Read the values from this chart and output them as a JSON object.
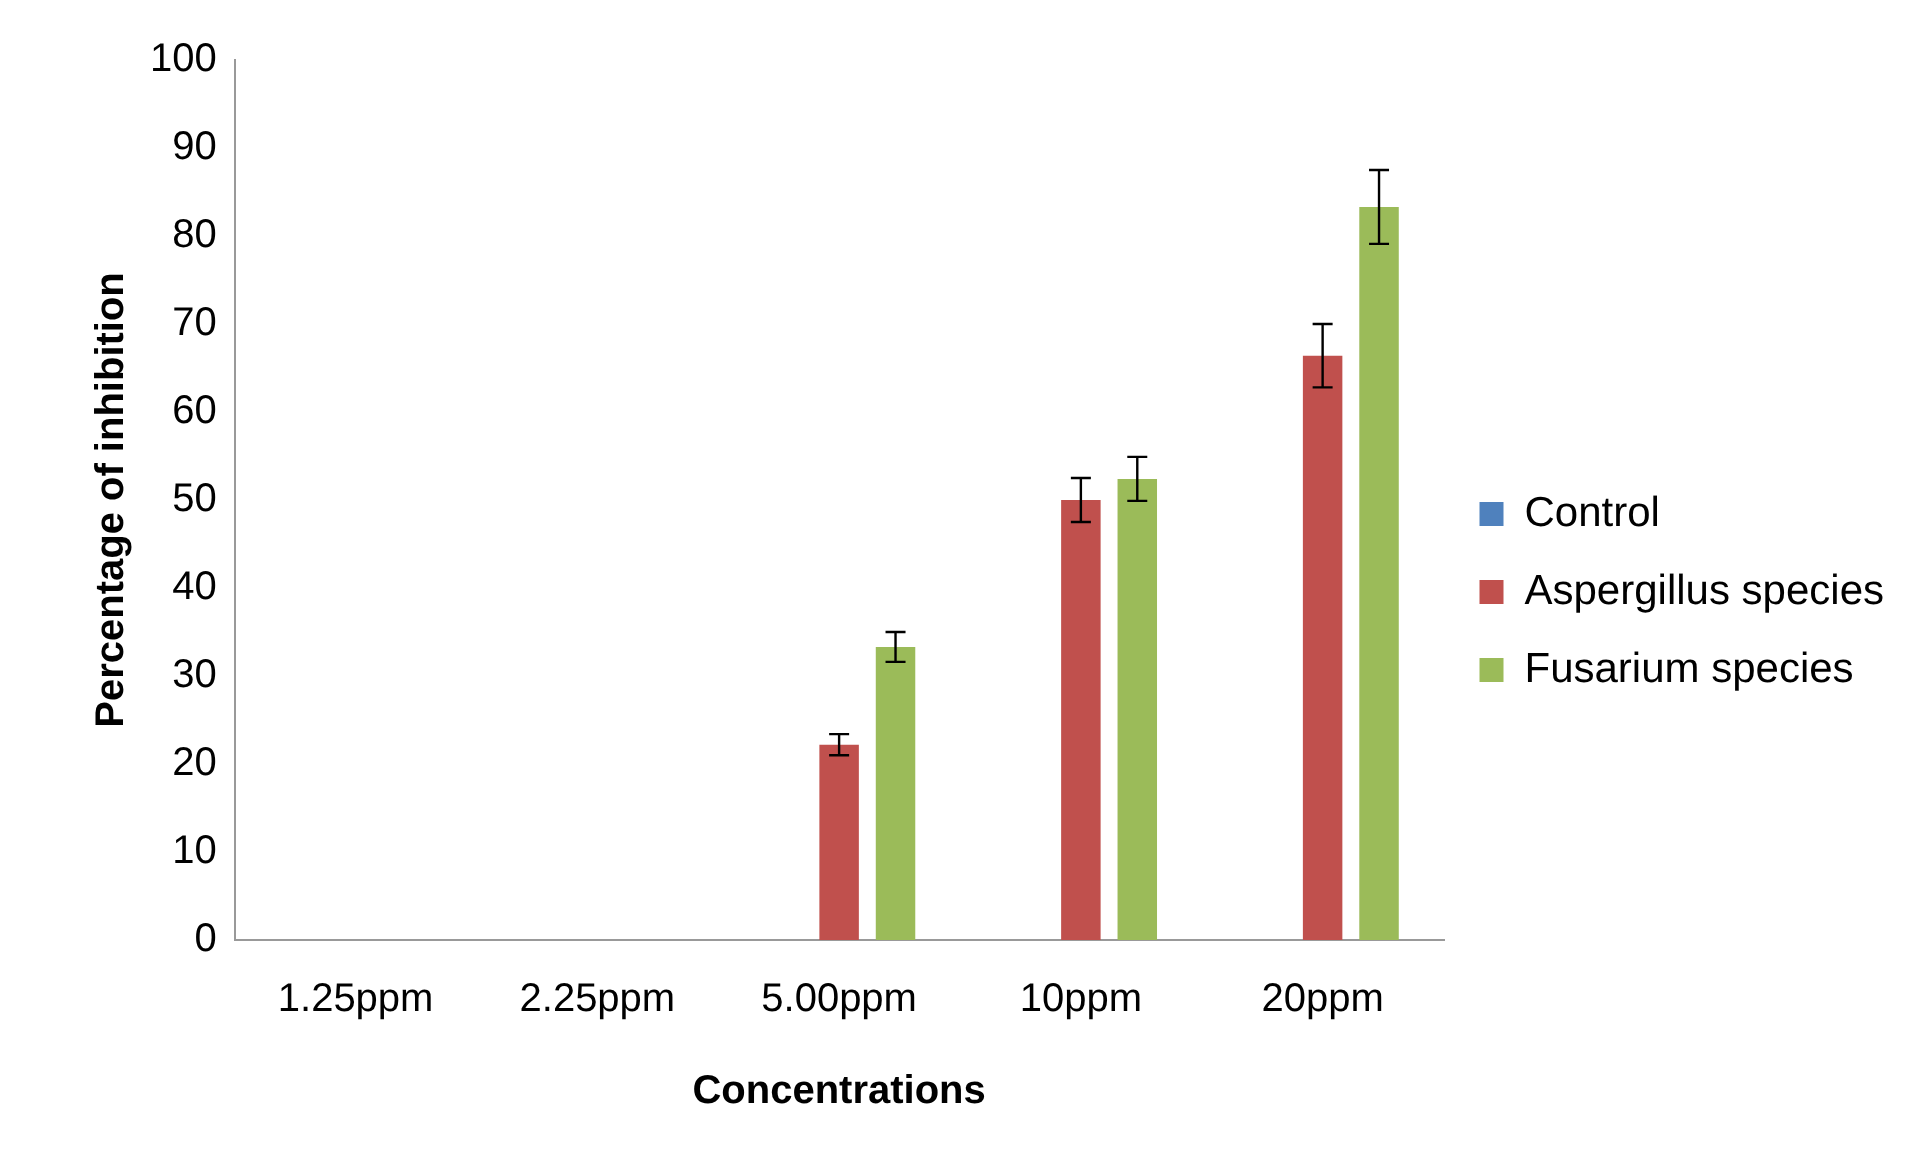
{
  "chart_data": {
    "type": "bar",
    "xlabel": "Concentrations",
    "ylabel": "Percentage of inhibition",
    "categories": [
      "1.25ppm",
      "2.25ppm",
      "5.00ppm",
      "10ppm",
      "20ppm"
    ],
    "series": [
      {
        "name": "Control",
        "color": "#4f81bd",
        "values": [
          0,
          0,
          0,
          0,
          0
        ]
      },
      {
        "name": "Aspergillus species",
        "color": "#c0504d",
        "values": [
          0,
          0,
          22.2,
          50,
          66.4
        ],
        "errors": [
          null,
          null,
          1.2,
          2.5,
          3.6
        ]
      },
      {
        "name": "Fusarium species",
        "color": "#9bbb59",
        "values": [
          0,
          0,
          33.3,
          52.4,
          83.3
        ],
        "errors": [
          null,
          null,
          1.7,
          2.5,
          4.2
        ]
      }
    ],
    "ylim": [
      0,
      100
    ],
    "yticks": [
      0,
      10,
      20,
      30,
      40,
      50,
      60,
      70,
      80,
      90,
      100
    ],
    "grid": false,
    "legend": "right"
  }
}
